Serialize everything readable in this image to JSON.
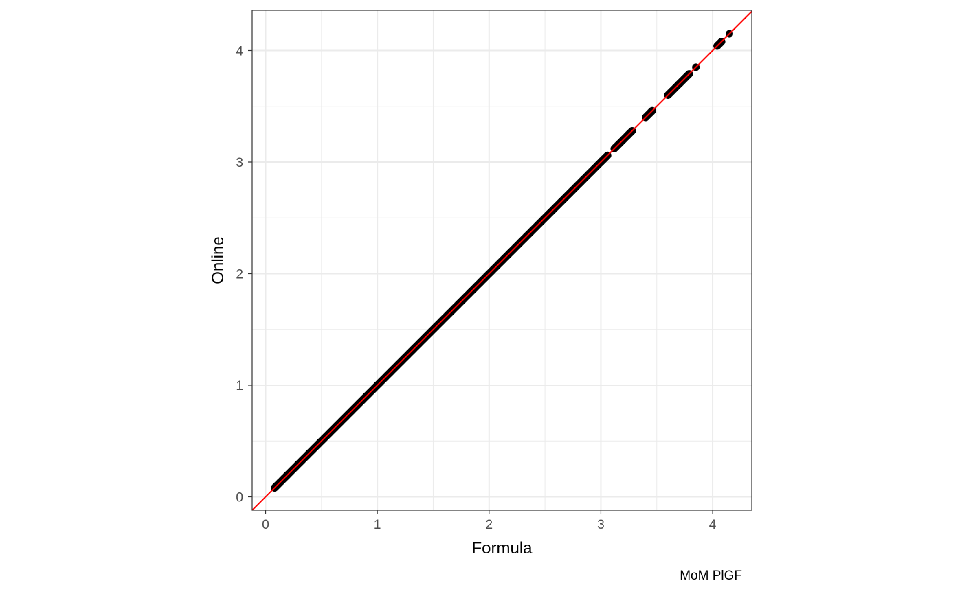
{
  "chart_data": {
    "type": "scatter",
    "title": "",
    "xlabel": "Formula",
    "ylabel": "Online",
    "caption": "MoM PlGF",
    "xlim": [
      -0.12,
      4.35
    ],
    "ylim": [
      -0.12,
      4.36
    ],
    "x_ticks": [
      0,
      1,
      2,
      3,
      4
    ],
    "y_ticks": [
      0,
      1,
      2,
      3,
      4
    ],
    "x_tick_labels": [
      "0",
      "1",
      "2",
      "3",
      "4"
    ],
    "y_tick_labels": [
      "0",
      "1",
      "2",
      "3",
      "4"
    ],
    "grid": true,
    "reference_line": {
      "intercept": 0,
      "slope": 1,
      "color": "#ff0000"
    },
    "point_color": "#000000",
    "series": [
      {
        "x": [
          0.08,
          0.1,
          0.12,
          0.15,
          0.18,
          0.2,
          0.25,
          0.3,
          0.35,
          0.4,
          0.45,
          0.5,
          0.55,
          0.6,
          0.65,
          0.7,
          0.75,
          0.8,
          0.85,
          0.9,
          0.95,
          1.0,
          1.05,
          1.1,
          1.15,
          1.2,
          1.25,
          1.3,
          1.35,
          1.4,
          1.45,
          1.5,
          1.55,
          1.6,
          1.65,
          1.7,
          1.75,
          1.8,
          1.85,
          1.9,
          1.95,
          2.0,
          2.05,
          2.1,
          2.15,
          2.2,
          2.25,
          2.3,
          2.35,
          2.4,
          2.45,
          2.5,
          2.55,
          2.6,
          2.65,
          2.7,
          2.75,
          2.8,
          2.85,
          2.9,
          2.95,
          3.0,
          3.03,
          3.06,
          3.12,
          3.15,
          3.18,
          3.23,
          3.25,
          3.28,
          3.4,
          3.44,
          3.46,
          3.6,
          3.64,
          3.69,
          3.72,
          3.76,
          3.79,
          3.85,
          4.04,
          4.06,
          4.08,
          4.15
        ],
        "y": [
          0.08,
          0.1,
          0.12,
          0.15,
          0.18,
          0.2,
          0.25,
          0.3,
          0.35,
          0.4,
          0.45,
          0.5,
          0.55,
          0.6,
          0.65,
          0.7,
          0.75,
          0.8,
          0.85,
          0.9,
          0.95,
          1.0,
          1.05,
          1.1,
          1.15,
          1.2,
          1.25,
          1.3,
          1.35,
          1.4,
          1.45,
          1.5,
          1.55,
          1.6,
          1.65,
          1.7,
          1.75,
          1.8,
          1.85,
          1.9,
          1.95,
          2.0,
          2.05,
          2.1,
          2.15,
          2.2,
          2.25,
          2.3,
          2.35,
          2.4,
          2.45,
          2.5,
          2.55,
          2.6,
          2.65,
          2.7,
          2.75,
          2.8,
          2.85,
          2.9,
          2.95,
          3.0,
          3.03,
          3.06,
          3.12,
          3.15,
          3.18,
          3.23,
          3.25,
          3.28,
          3.4,
          3.44,
          3.46,
          3.6,
          3.64,
          3.69,
          3.72,
          3.76,
          3.79,
          3.85,
          4.04,
          4.06,
          4.08,
          4.15
        ]
      }
    ]
  }
}
